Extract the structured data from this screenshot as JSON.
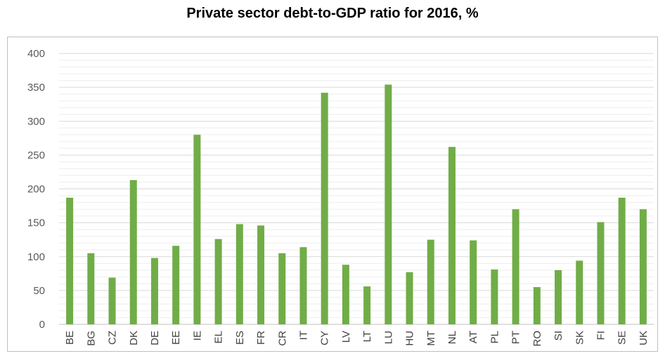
{
  "chart_data": {
    "type": "bar",
    "title": "Private sector debt-to-GDP ratio for 2016, %",
    "xlabel": "",
    "ylabel": "",
    "ylim": [
      0,
      400
    ],
    "yticks": [
      0,
      50,
      100,
      150,
      200,
      250,
      300,
      350,
      400
    ],
    "grid": true,
    "legend": "none",
    "bar_color": "#70ad47",
    "categories": [
      "BE",
      "BG",
      "CZ",
      "DK",
      "DE",
      "EE",
      "IE",
      "EL",
      "ES",
      "FR",
      "CR",
      "IT",
      "CY",
      "LV",
      "LT",
      "LU",
      "HU",
      "MT",
      "NL",
      "AT",
      "PL",
      "PT",
      "RO",
      "SI",
      "SK",
      "FI",
      "SE",
      "UK"
    ],
    "values": [
      187,
      105,
      69,
      213,
      98,
      116,
      280,
      126,
      148,
      146,
      105,
      114,
      342,
      88,
      56,
      354,
      77,
      125,
      262,
      124,
      81,
      170,
      55,
      80,
      94,
      151,
      187,
      170
    ]
  }
}
